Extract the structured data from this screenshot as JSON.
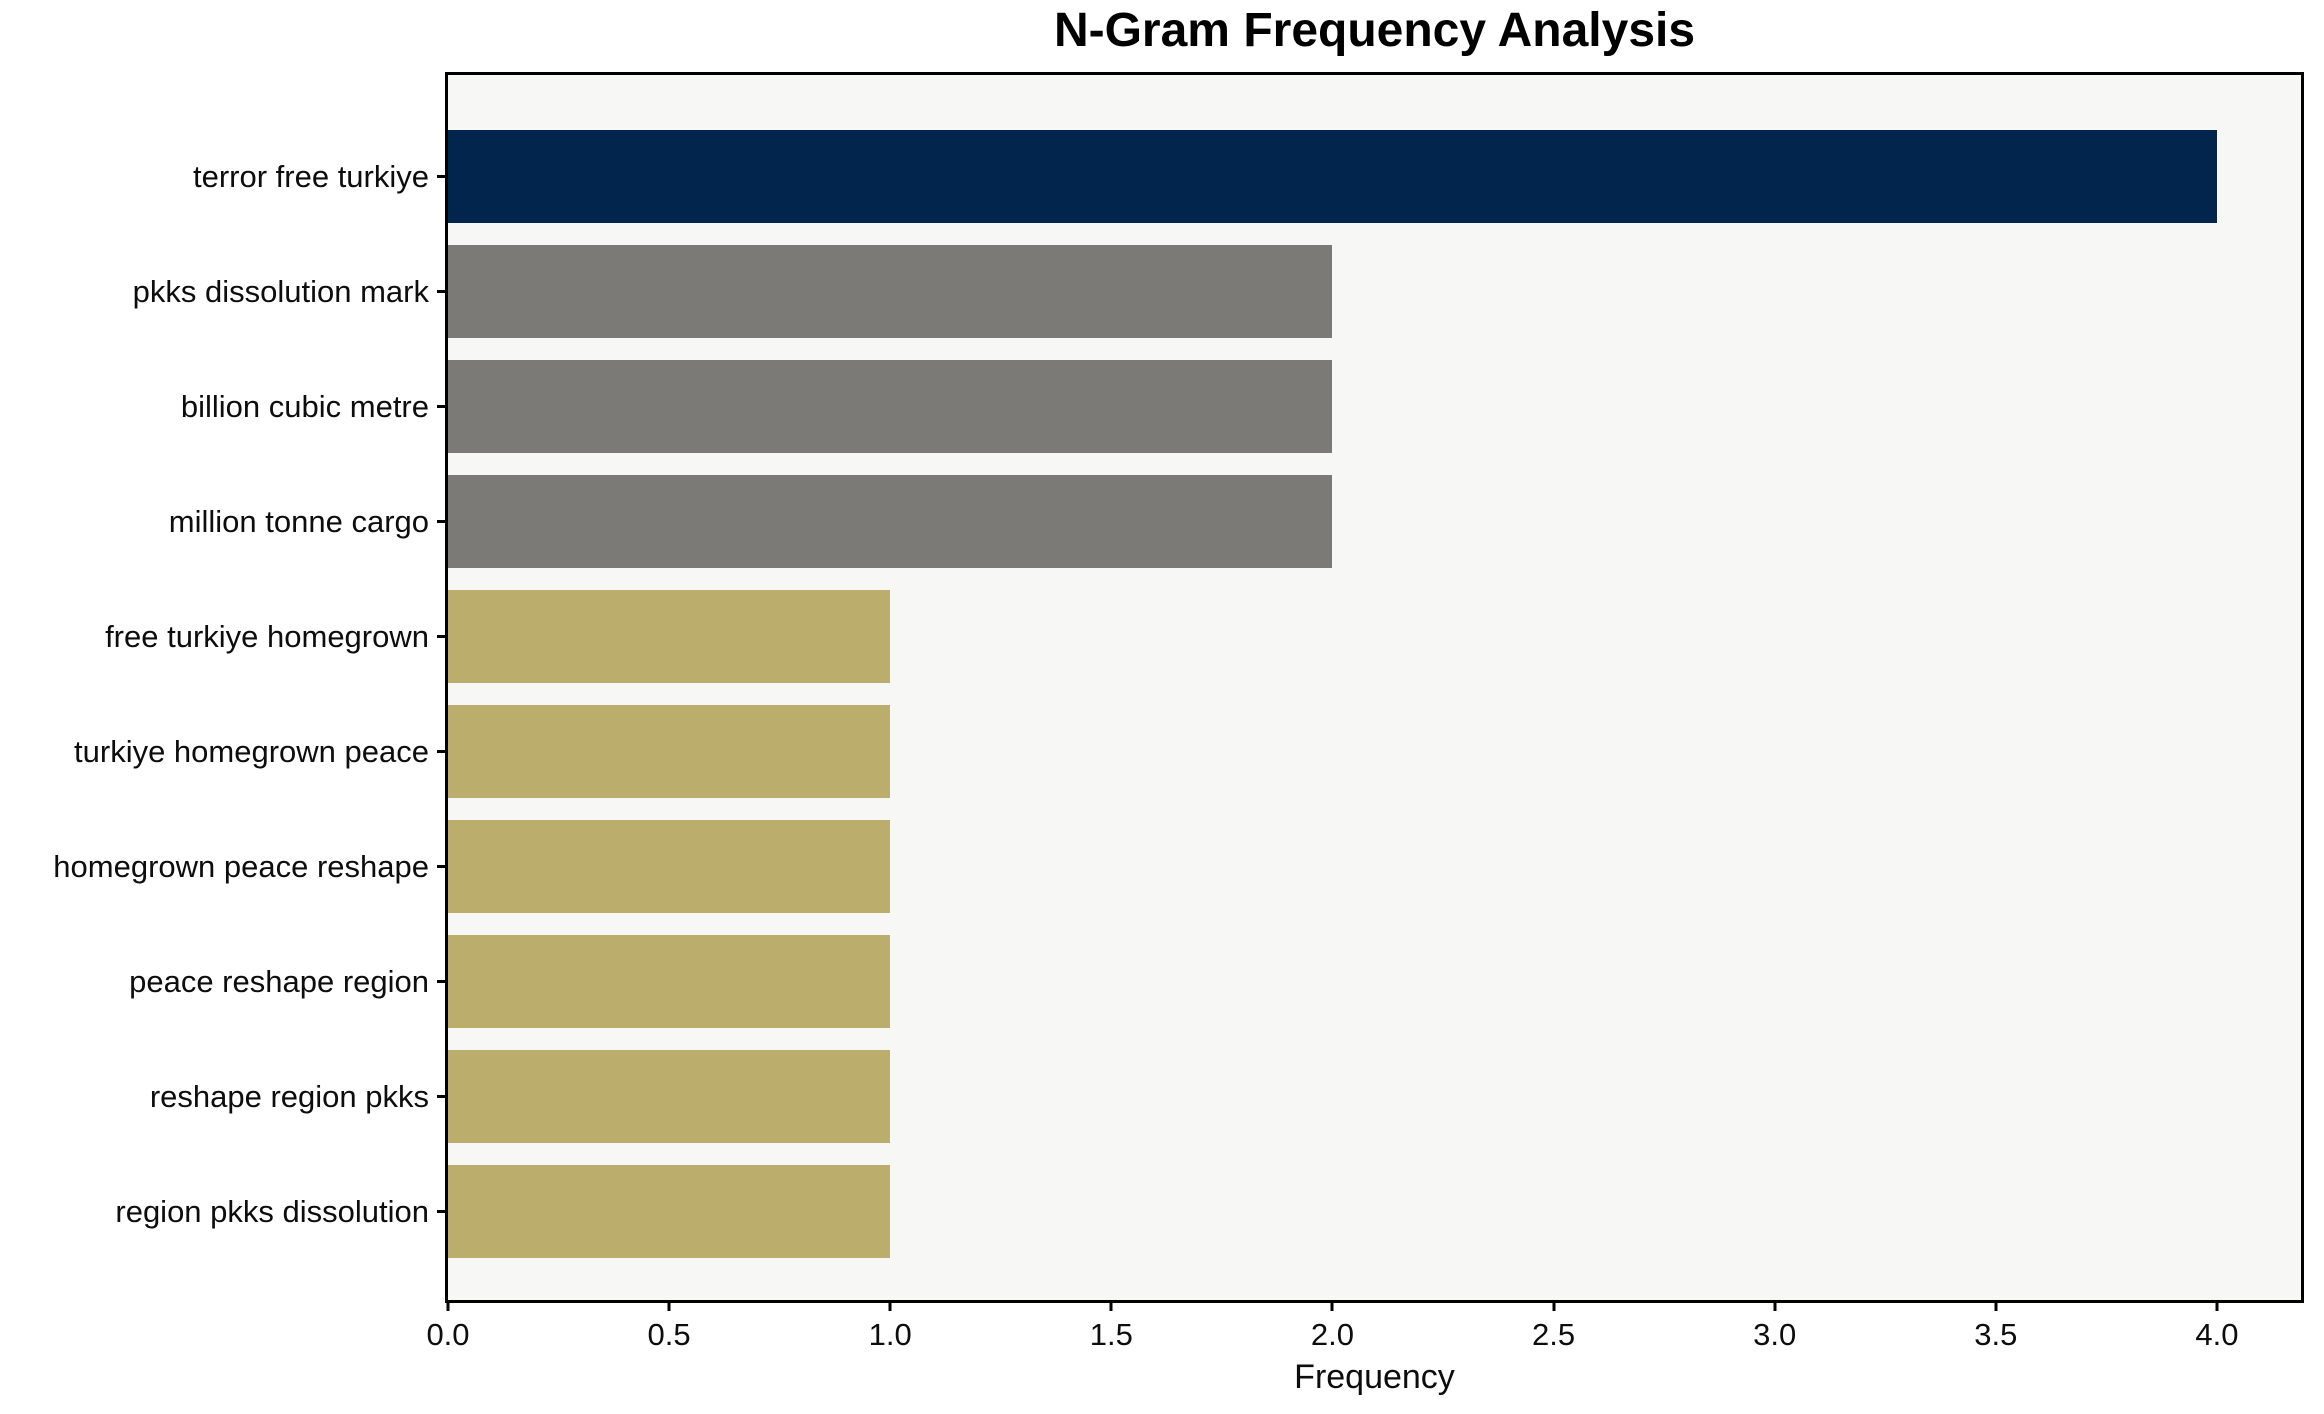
{
  "figure": {
    "background": "#ffffff"
  },
  "chart_data": {
    "type": "bar",
    "orientation": "horizontal",
    "title": "N-Gram Frequency Analysis",
    "xlabel": "Frequency",
    "ylabel": "",
    "categories": [
      "terror free turkiye",
      "pkks dissolution mark",
      "billion cubic metre",
      "million tonne cargo",
      "free turkiye homegrown",
      "turkiye homegrown peace",
      "homegrown peace reshape",
      "peace reshape region",
      "reshape region pkks",
      "region pkks dissolution"
    ],
    "values": [
      4,
      2,
      2,
      2,
      1,
      1,
      1,
      1,
      1,
      1
    ],
    "bar_colors": [
      "#02254d",
      "#7b7a76",
      "#7b7a76",
      "#7b7a76",
      "#bbad6c",
      "#bbad6c",
      "#bbad6c",
      "#bbad6c",
      "#bbad6c",
      "#bbad6c"
    ],
    "xlim": [
      0,
      4.19
    ],
    "xticks": [
      0.0,
      0.5,
      1.0,
      1.5,
      2.0,
      2.5,
      3.0,
      3.5,
      4.0
    ],
    "xtick_labels": [
      "0.0",
      "0.5",
      "1.0",
      "1.5",
      "2.0",
      "2.5",
      "3.0",
      "3.5",
      "4.0"
    ],
    "grid": false,
    "legend_position": "none",
    "plot_background": "#f7f7f6",
    "spine_color": "#000000"
  }
}
